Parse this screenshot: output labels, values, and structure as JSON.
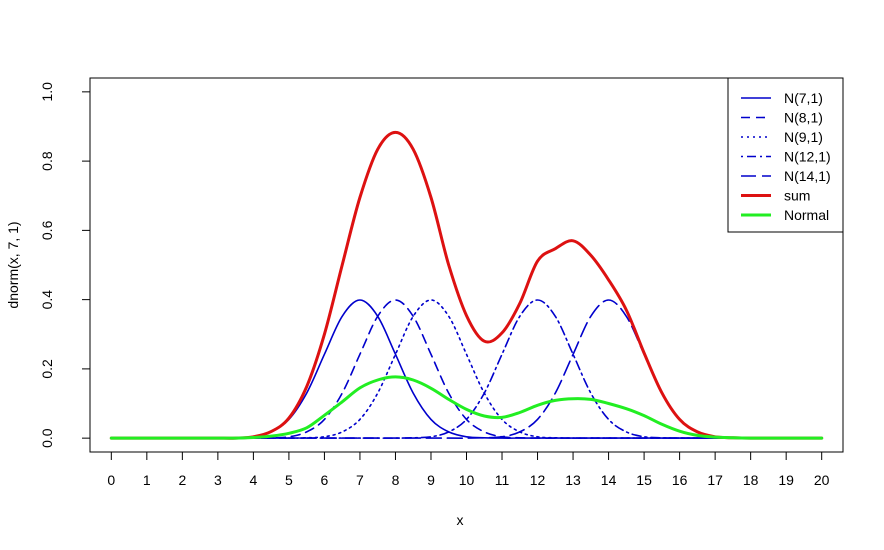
{
  "chart_data": {
    "type": "line",
    "title": "",
    "xlabel": "x",
    "ylabel": "dnorm(x, 7, 1)",
    "xlim": [
      -0.6,
      20.6
    ],
    "ylim": [
      -0.04,
      1.04
    ],
    "xticks": [
      0,
      1,
      2,
      3,
      4,
      5,
      6,
      7,
      8,
      9,
      10,
      11,
      12,
      13,
      14,
      15,
      16,
      17,
      18,
      19,
      20
    ],
    "yticks": [
      0.0,
      0.2,
      0.4,
      0.6,
      0.8,
      1.0
    ],
    "ytick_labels": [
      "0.0",
      "0.2",
      "0.4",
      "0.6",
      "0.8",
      "1.0"
    ],
    "grid": false,
    "legend_position": "top-right",
    "x": [
      0,
      0.5,
      1,
      1.5,
      2,
      2.5,
      3,
      3.5,
      4,
      4.5,
      5,
      5.5,
      6,
      6.5,
      7,
      7.5,
      8,
      8.5,
      9,
      9.5,
      10,
      10.5,
      11,
      11.5,
      12,
      12.5,
      13,
      13.5,
      14,
      14.5,
      15,
      15.5,
      16,
      16.5,
      17,
      17.5,
      18,
      18.5,
      19,
      19.5,
      20
    ],
    "series": [
      {
        "name": "N(7,1)",
        "color": "#0000cc",
        "dash": "solid",
        "width": 1.6,
        "values": [
          0,
          0,
          0,
          0,
          0,
          0,
          0,
          0,
          0.004,
          0.018,
          0.054,
          0.13,
          0.242,
          0.352,
          0.399,
          0.352,
          0.242,
          0.13,
          0.054,
          0.018,
          0.004,
          0.001,
          0,
          0,
          0,
          0,
          0,
          0,
          0,
          0,
          0,
          0,
          0,
          0,
          0,
          0,
          0,
          0,
          0,
          0,
          0
        ]
      },
      {
        "name": "N(8,1)",
        "color": "#0000cc",
        "dash": "dashed",
        "width": 1.6,
        "values": [
          0,
          0,
          0,
          0,
          0,
          0,
          0,
          0,
          0,
          0.001,
          0.004,
          0.018,
          0.054,
          0.13,
          0.242,
          0.352,
          0.399,
          0.352,
          0.242,
          0.13,
          0.054,
          0.018,
          0.004,
          0.001,
          0,
          0,
          0,
          0,
          0,
          0,
          0,
          0,
          0,
          0,
          0,
          0,
          0,
          0,
          0,
          0,
          0
        ]
      },
      {
        "name": "N(9,1)",
        "color": "#0000cc",
        "dash": "dotted",
        "width": 1.6,
        "values": [
          0,
          0,
          0,
          0,
          0,
          0,
          0,
          0,
          0,
          0,
          0,
          0.001,
          0.004,
          0.018,
          0.054,
          0.13,
          0.242,
          0.352,
          0.399,
          0.352,
          0.242,
          0.13,
          0.054,
          0.018,
          0.004,
          0.001,
          0,
          0,
          0,
          0,
          0,
          0,
          0,
          0,
          0,
          0,
          0,
          0,
          0,
          0,
          0
        ]
      },
      {
        "name": "N(12,1)",
        "color": "#0000cc",
        "dash": "dotdash",
        "width": 1.6,
        "values": [
          0,
          0,
          0,
          0,
          0,
          0,
          0,
          0,
          0,
          0,
          0,
          0,
          0,
          0,
          0,
          0,
          0,
          0.001,
          0.004,
          0.018,
          0.054,
          0.13,
          0.242,
          0.352,
          0.399,
          0.352,
          0.242,
          0.13,
          0.054,
          0.018,
          0.004,
          0.001,
          0,
          0,
          0,
          0,
          0,
          0,
          0,
          0,
          0
        ]
      },
      {
        "name": "N(14,1)",
        "color": "#0000cc",
        "dash": "longdash",
        "width": 1.6,
        "values": [
          0,
          0,
          0,
          0,
          0,
          0,
          0,
          0,
          0,
          0,
          0,
          0,
          0,
          0,
          0,
          0,
          0,
          0,
          0,
          0,
          0,
          0.001,
          0.004,
          0.018,
          0.054,
          0.13,
          0.242,
          0.352,
          0.399,
          0.352,
          0.242,
          0.13,
          0.054,
          0.018,
          0.004,
          0.001,
          0,
          0,
          0,
          0,
          0
        ]
      },
      {
        "name": "sum",
        "color": "#dd1111",
        "dash": "solid",
        "width": 3,
        "values": [
          0,
          0,
          0,
          0,
          0,
          0,
          0,
          0,
          0.004,
          0.019,
          0.058,
          0.149,
          0.3,
          0.5,
          0.695,
          0.834,
          0.883,
          0.834,
          0.695,
          0.5,
          0.354,
          0.28,
          0.304,
          0.389,
          0.511,
          0.547,
          0.57,
          0.528,
          0.457,
          0.37,
          0.246,
          0.131,
          0.054,
          0.018,
          0.004,
          0.001,
          0,
          0,
          0,
          0,
          0
        ]
      },
      {
        "name": "Normal",
        "color": "#22ee22",
        "dash": "solid",
        "width": 3,
        "values": [
          0,
          0,
          0,
          0,
          0,
          0,
          0,
          0,
          0.002,
          0.006,
          0.014,
          0.03,
          0.066,
          0.105,
          0.145,
          0.168,
          0.177,
          0.168,
          0.144,
          0.112,
          0.083,
          0.064,
          0.06,
          0.074,
          0.095,
          0.109,
          0.114,
          0.112,
          0.1,
          0.085,
          0.065,
          0.04,
          0.02,
          0.008,
          0.003,
          0.001,
          0,
          0,
          0,
          0,
          0
        ]
      }
    ]
  }
}
